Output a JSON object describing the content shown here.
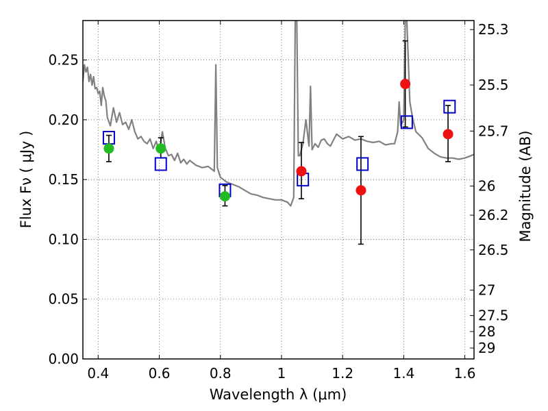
{
  "chart_data": {
    "type": "scatter",
    "title": "",
    "xlabel": "Wavelength  λ (μm)",
    "ylabel": "Flux  Fν  ( μJy )",
    "y2label": "Magnitude (AB)",
    "xlim": [
      0.35,
      1.63
    ],
    "ylim": [
      0.0,
      0.283
    ],
    "grid": true,
    "x_ticks": [
      {
        "value": 0.4,
        "label": "0.4"
      },
      {
        "value": 0.6,
        "label": "0.6"
      },
      {
        "value": 0.8,
        "label": "0.8"
      },
      {
        "value": 1.0,
        "label": "1"
      },
      {
        "value": 1.2,
        "label": "1.2"
      },
      {
        "value": 1.4,
        "label": "1.4"
      },
      {
        "value": 1.6,
        "label": "1.6"
      }
    ],
    "y_ticks": [
      {
        "value": 0.0,
        "label": "0.00"
      },
      {
        "value": 0.05,
        "label": "0.05"
      },
      {
        "value": 0.1,
        "label": "0.10"
      },
      {
        "value": 0.15,
        "label": "0.15"
      },
      {
        "value": 0.2,
        "label": "0.20"
      },
      {
        "value": 0.25,
        "label": "0.25"
      }
    ],
    "y2_ticks": [
      {
        "mag": 25.3,
        "label": "25.3"
      },
      {
        "mag": 25.5,
        "label": "25.5"
      },
      {
        "mag": 25.7,
        "label": "25.7"
      },
      {
        "mag": 26.0,
        "label": "26"
      },
      {
        "mag": 26.2,
        "label": "26.2"
      },
      {
        "mag": 26.5,
        "label": "26.5"
      },
      {
        "mag": 27.0,
        "label": "27"
      },
      {
        "mag": 27.5,
        "label": "27.5"
      },
      {
        "mag": 28.0,
        "label": "28"
      },
      {
        "mag": 29.0,
        "label": "29"
      }
    ],
    "colors": {
      "spectrum": "#808080",
      "model": "#0000cc",
      "green_points": "#22bb22",
      "red_points": "#ee1111",
      "error_bars": "#000000",
      "grid": "#555555"
    },
    "series": [
      {
        "name": "model spectrum",
        "kind": "line",
        "x": [
          0.35,
          0.355,
          0.36,
          0.365,
          0.37,
          0.375,
          0.38,
          0.385,
          0.39,
          0.395,
          0.4,
          0.405,
          0.41,
          0.415,
          0.42,
          0.425,
          0.43,
          0.44,
          0.45,
          0.46,
          0.47,
          0.48,
          0.49,
          0.5,
          0.51,
          0.52,
          0.53,
          0.54,
          0.55,
          0.56,
          0.57,
          0.58,
          0.59,
          0.6,
          0.61,
          0.62,
          0.63,
          0.64,
          0.65,
          0.66,
          0.67,
          0.68,
          0.69,
          0.7,
          0.72,
          0.74,
          0.76,
          0.78,
          0.785,
          0.79,
          0.795,
          0.8,
          0.82,
          0.84,
          0.86,
          0.88,
          0.9,
          0.92,
          0.94,
          0.96,
          0.98,
          1.0,
          1.02,
          1.03,
          1.04,
          1.045,
          1.05,
          1.055,
          1.06,
          1.07,
          1.08,
          1.09,
          1.095,
          1.1,
          1.11,
          1.12,
          1.13,
          1.14,
          1.15,
          1.16,
          1.18,
          1.2,
          1.22,
          1.24,
          1.26,
          1.28,
          1.3,
          1.32,
          1.34,
          1.36,
          1.37,
          1.38,
          1.385,
          1.39,
          1.4,
          1.405,
          1.41,
          1.42,
          1.43,
          1.44,
          1.46,
          1.48,
          1.5,
          1.52,
          1.54,
          1.56,
          1.58,
          1.6,
          1.62,
          1.63
        ],
        "y": [
          0.232,
          0.246,
          0.24,
          0.244,
          0.232,
          0.238,
          0.229,
          0.236,
          0.226,
          0.227,
          0.222,
          0.224,
          0.212,
          0.227,
          0.22,
          0.216,
          0.202,
          0.195,
          0.21,
          0.198,
          0.206,
          0.196,
          0.198,
          0.192,
          0.2,
          0.19,
          0.184,
          0.186,
          0.182,
          0.18,
          0.184,
          0.176,
          0.182,
          0.173,
          0.19,
          0.176,
          0.17,
          0.171,
          0.166,
          0.172,
          0.164,
          0.167,
          0.163,
          0.166,
          0.162,
          0.16,
          0.161,
          0.157,
          0.246,
          0.16,
          0.156,
          0.152,
          0.148,
          0.146,
          0.144,
          0.141,
          0.138,
          0.137,
          0.135,
          0.134,
          0.133,
          0.133,
          0.131,
          0.128,
          0.135,
          0.283,
          0.283,
          0.17,
          0.17,
          0.18,
          0.2,
          0.178,
          0.228,
          0.175,
          0.18,
          0.177,
          0.183,
          0.184,
          0.18,
          0.178,
          0.188,
          0.184,
          0.186,
          0.183,
          0.184,
          0.182,
          0.181,
          0.182,
          0.179,
          0.18,
          0.18,
          0.19,
          0.215,
          0.195,
          0.2,
          0.283,
          0.283,
          0.215,
          0.2,
          0.19,
          0.185,
          0.176,
          0.172,
          0.169,
          0.168,
          0.168,
          0.167,
          0.168,
          0.17,
          0.171
        ]
      },
      {
        "name": "model photometry",
        "kind": "open-square",
        "x": [
          0.435,
          0.605,
          0.815,
          1.07,
          1.265,
          1.41,
          1.55
        ],
        "y": [
          0.185,
          0.163,
          0.141,
          0.15,
          0.163,
          0.198,
          0.211
        ]
      },
      {
        "name": "optical detections",
        "kind": "filled-circle",
        "color": "green",
        "x": [
          0.435,
          0.605,
          0.815
        ],
        "y": [
          0.176,
          0.176,
          0.136
        ],
        "yerr_low": [
          0.165,
          0.168,
          0.128
        ],
        "yerr_high": [
          0.187,
          0.185,
          0.145
        ]
      },
      {
        "name": "infrared detections",
        "kind": "filled-circle",
        "color": "red",
        "x": [
          1.065,
          1.26,
          1.405,
          1.545
        ],
        "y": [
          0.157,
          0.141,
          0.23,
          0.188
        ],
        "yerr_low": [
          0.134,
          0.096,
          0.194,
          0.165
        ],
        "yerr_high": [
          0.181,
          0.186,
          0.266,
          0.212
        ]
      }
    ]
  }
}
